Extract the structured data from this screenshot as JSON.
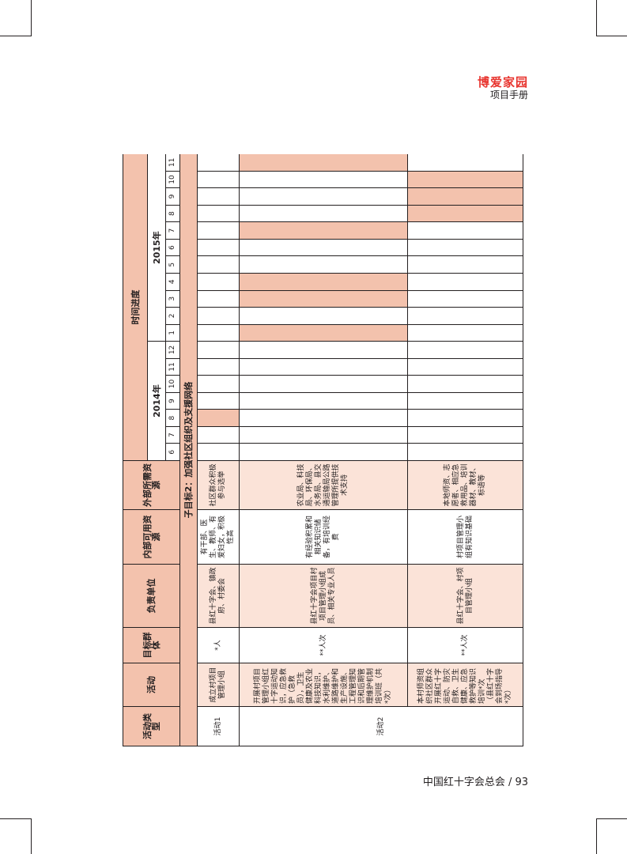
{
  "header": {
    "brand": "博爱家园",
    "subtitle": "项目手册"
  },
  "footer": {
    "org_page": "中国红十字会总会 / 93"
  },
  "table": {
    "headers": {
      "type": "活动类型",
      "activity": "活动",
      "target": "目标群体",
      "unit": "负责单位",
      "internal": "内部可用资源",
      "external": "外部所需资源",
      "time": "时间进度",
      "y2014": "2014年",
      "y2015": "2015年",
      "m2014": [
        "6",
        "7",
        "8",
        "9",
        "10",
        "11",
        "12"
      ],
      "m2015": [
        "1",
        "2",
        "3",
        "4",
        "5",
        "6",
        "7",
        "8",
        "9",
        "10",
        "11"
      ]
    },
    "section_title": "子目标2：加强社区组织及支援网络",
    "rows": [
      {
        "type": "活动1",
        "activity": "成立村项目管理小组",
        "target": "*人",
        "unit": "县红十字会、镇政府、村委会",
        "internal": "有干部、医生、教师、有爱妇女，积极性高",
        "external": "社区群众积极参与选举"
      },
      {
        "type": "活动2",
        "activity": "开展村项目管理小组红十字运动知识，应急救护（急救员），卫生健康及农业科技知识，水利维护、道路维护和生产设施、工程管理知识和后期管理维护机制培训班（共*次）",
        "target": "**人次",
        "unit": "县红十字会项目村项目管理小组成员、相关专业人员",
        "internal": "有经验积累和相关知识储备，有培训经费",
        "external": "农业局、科技局、环保局、水务局、县交通运输局公路管理所提供技术支持"
      },
      {
        "type": "",
        "activity": "本村师资组织社区群众开展红十字运动、防灾自救、卫生健康、应急救护等知识培训*次（县红十字会到场指导*次）",
        "target": "**人次",
        "unit": "县红十字会、村项目管理小组",
        "internal": "村项目管理小组有知识基础",
        "external": "本地师资、志愿者、相应急救用品、培训器材、教材、标语等"
      }
    ]
  }
}
